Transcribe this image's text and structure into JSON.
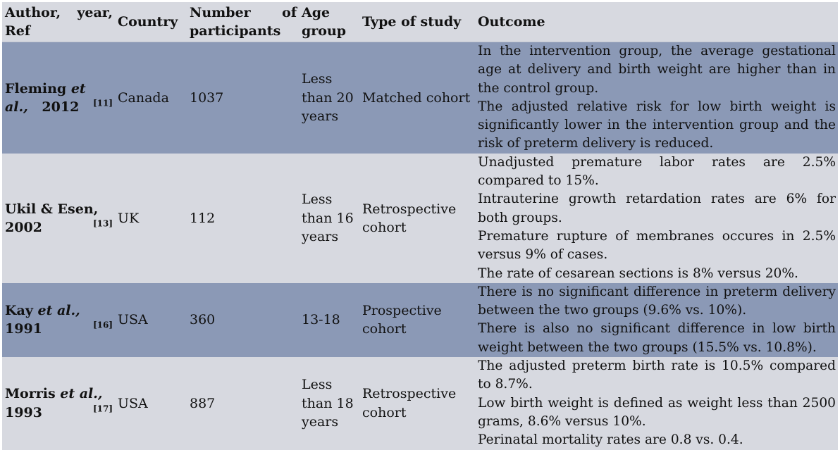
{
  "table": {
    "headers": {
      "author": "Author, year, Ref",
      "country": "Country",
      "participants": "Number of participants",
      "age": "Age group",
      "type": "Type of study",
      "outcome": "Outcome"
    },
    "rows": [
      {
        "author_name": "Fleming",
        "author_etal": "et al.,",
        "author_year": "2012",
        "author_ref": "[11]",
        "country": "Canada",
        "participants": "1037",
        "age": "Less than 20 years",
        "type": "Matched cohort",
        "outcome": [
          "In the intervention group, the average gestational age at delivery and birth weight are higher than in the control group.",
          "The adjusted relative risk for low birth weight is significantly lower in the intervention group and the risk of preterm delivery is reduced."
        ]
      },
      {
        "author_name": "Ukil & Esen,",
        "author_year": "2002",
        "author_ref": "[13]",
        "country": "UK",
        "participants": "112",
        "age": "Less than 16 years",
        "type": "Retrospective cohort",
        "outcome": [
          "Unadjusted premature labor rates are 2.5% compared to 15%.",
          "Intrauterine growth retardation rates are 6% for both groups.",
          "Premature rupture of membranes occures in 2.5% versus 9% of cases.",
          "The rate of cesarean sections is 8% versus 20%."
        ]
      },
      {
        "author_name": "Kay",
        "author_etal": "et al.,",
        "author_year": "1991",
        "author_ref": "[16]",
        "country": "USA",
        "participants": "360",
        "age": "13-18",
        "type": "Prospective cohort",
        "outcome": [
          "There is no significant difference in preterm delivery between the two groups (9.6% vs. 10%).",
          "There is also no significant difference in low birth weight between the two groups (15.5% vs. 10.8%)."
        ]
      },
      {
        "author_name": "Morris",
        "author_etal": "et al.,",
        "author_year": "1993",
        "author_ref": "[17]",
        "country": "USA",
        "participants": "887",
        "age": "Less than 18 years",
        "type": "Retrospective cohort",
        "outcome": [
          "The adjusted preterm birth rate is 10.5% compared to 8.7%.",
          "Low birth weight is defined as weight less than 2500 grams, 8.6% versus 10%.",
          "Perinatal mortality rates are 0.8 vs. 0.4."
        ]
      }
    ]
  },
  "colors": {
    "row_dark": "#8b99b6",
    "row_light": "#d7d9e0"
  }
}
